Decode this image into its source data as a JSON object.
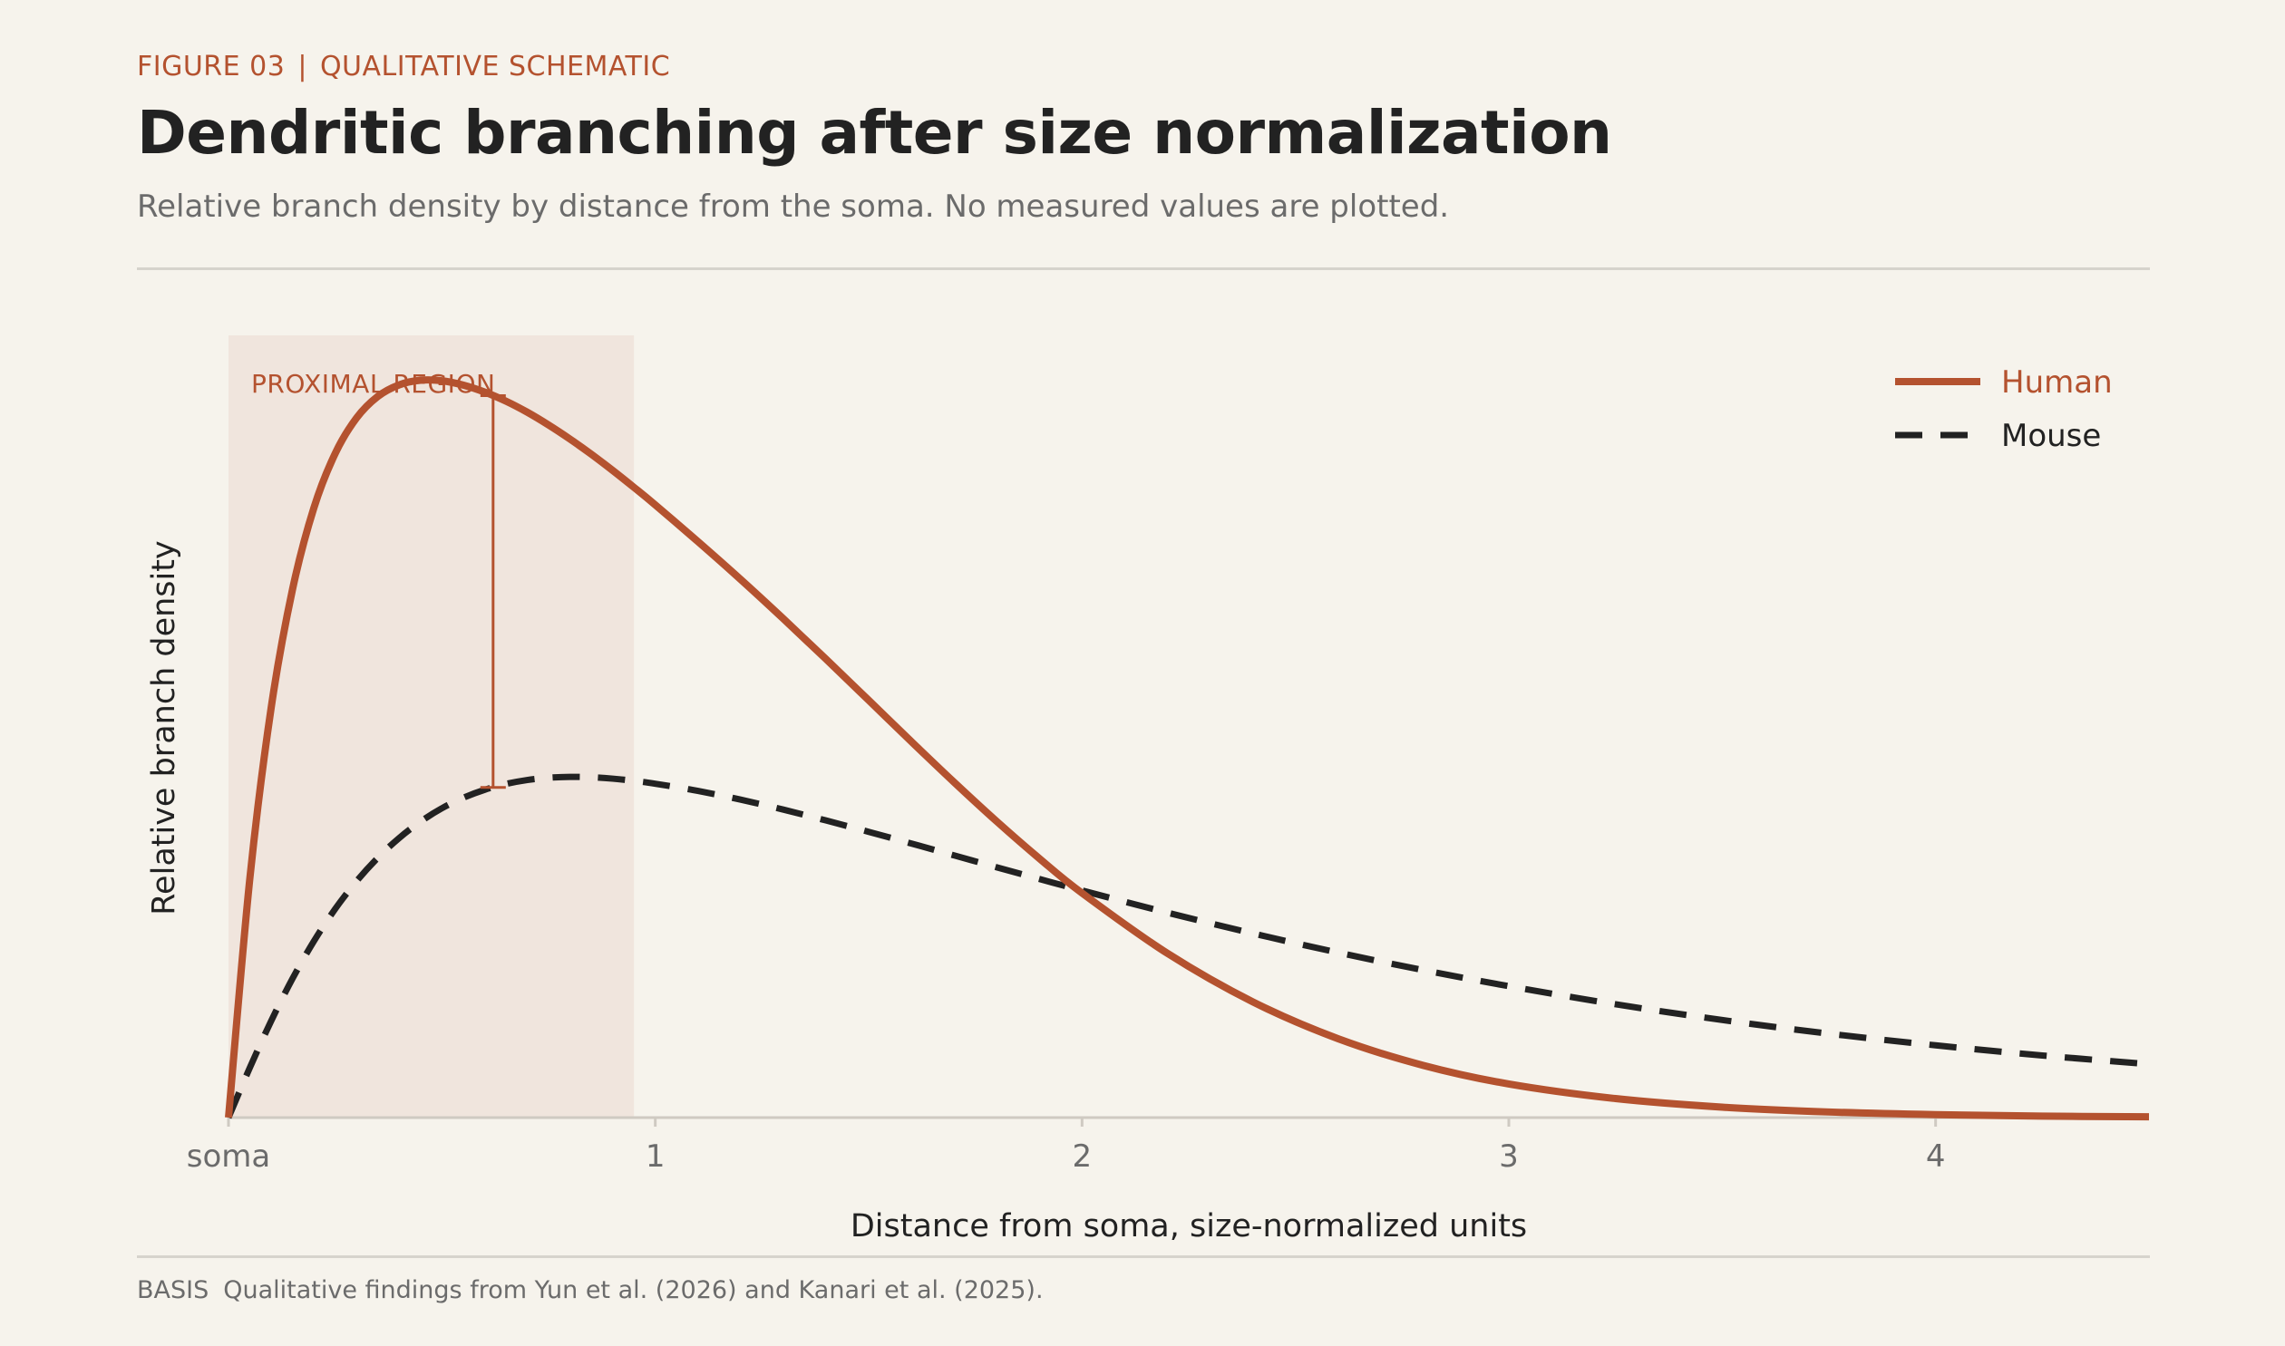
{
  "header": {
    "figure_label": "FIGURE 03",
    "separator": "|",
    "figure_kind": "QUALITATIVE SCHEMATIC",
    "title": "Dendritic branching after size normalization",
    "subtitle": "Relative branch density by distance from the soma. No measured values are plotted."
  },
  "footer": {
    "label": "BASIS",
    "text": "Qualitative findings from Yun et al. (2026) and Kanari et al. (2025)."
  },
  "colors": {
    "background": "#f6f3ec",
    "accent": "#b4522f",
    "ink": "#222222",
    "muted": "#6b6b6b",
    "region_fill": "#f0e5dd",
    "axis": "#cfcac2"
  },
  "chart_data": {
    "type": "line",
    "xlabel": "Distance from soma, size-normalized units",
    "ylabel": "Relative branch density",
    "xlim": [
      0,
      4.5
    ],
    "ylim": [
      0,
      1.0
    ],
    "x_ticks": [
      {
        "value": 0,
        "label": "soma"
      },
      {
        "value": 1,
        "label": "1"
      },
      {
        "value": 2,
        "label": "2"
      },
      {
        "value": 3,
        "label": "3"
      },
      {
        "value": 4,
        "label": "4"
      }
    ],
    "y_ticks_shown": false,
    "grid": false,
    "legend_position": "top-right",
    "region": {
      "label": "PROXIMAL REGION",
      "x_start": 0,
      "x_end": 0.95
    },
    "gap_marker": {
      "x": 0.62,
      "series_top": "Human",
      "series_bottom": "Mouse"
    },
    "series": [
      {
        "name": "Human",
        "style": "solid",
        "color": "#b4522f",
        "x": [
          0,
          0.05,
          0.1,
          0.15,
          0.2,
          0.25,
          0.3,
          0.35,
          0.4,
          0.45,
          0.5,
          0.55,
          0.6,
          0.65,
          0.7,
          0.75,
          0.8,
          0.85,
          0.9,
          0.95,
          1.0,
          1.1,
          1.2,
          1.3,
          1.4,
          1.5,
          1.6,
          1.7,
          1.8,
          1.9,
          2.0,
          2.2,
          2.4,
          2.6,
          2.8,
          3.0,
          3.25,
          3.5,
          3.75,
          4.0,
          4.25,
          4.5
        ],
        "y": [
          0.0,
          0.3067,
          0.5259,
          0.6776,
          0.7821,
          0.852,
          0.8975,
          0.9252,
          0.94,
          0.9459,
          0.9452,
          0.9397,
          0.9308,
          0.9191,
          0.9049,
          0.8885,
          0.8705,
          0.8511,
          0.8303,
          0.8085,
          0.786,
          0.7389,
          0.6904,
          0.64,
          0.5882,
          0.5354,
          0.4824,
          0.4303,
          0.38,
          0.3324,
          0.288,
          0.2107,
          0.1485,
          0.1012,
          0.0669,
          0.0431,
          0.0244,
          0.0134,
          0.0072,
          0.0038,
          0.0019,
          0.001
        ]
      },
      {
        "name": "Mouse",
        "style": "dashed",
        "color": "#222222",
        "x": [
          0,
          0.05,
          0.1,
          0.15,
          0.2,
          0.25,
          0.3,
          0.35,
          0.4,
          0.45,
          0.5,
          0.55,
          0.6,
          0.65,
          0.7,
          0.75,
          0.8,
          0.85,
          0.9,
          0.95,
          1.0,
          1.1,
          1.2,
          1.3,
          1.4,
          1.5,
          1.6,
          1.7,
          1.8,
          1.9,
          2.0,
          2.2,
          2.4,
          2.6,
          2.8,
          3.0,
          3.25,
          3.5,
          3.75,
          4.0,
          4.25,
          4.5
        ],
        "y": [
          0.0,
          0.064,
          0.124,
          0.1783,
          0.2262,
          0.2677,
          0.3032,
          0.3334,
          0.3587,
          0.3797,
          0.3968,
          0.4102,
          0.4205,
          0.428,
          0.4331,
          0.436,
          0.4371,
          0.4366,
          0.4348,
          0.432,
          0.4283,
          0.4191,
          0.4079,
          0.3951,
          0.3812,
          0.3666,
          0.3516,
          0.3364,
          0.3211,
          0.3061,
          0.2913,
          0.2629,
          0.2363,
          0.2117,
          0.1891,
          0.1686,
          0.1454,
          0.1252,
          0.1077,
          0.0927,
          0.0797,
          0.0685
        ]
      }
    ]
  }
}
